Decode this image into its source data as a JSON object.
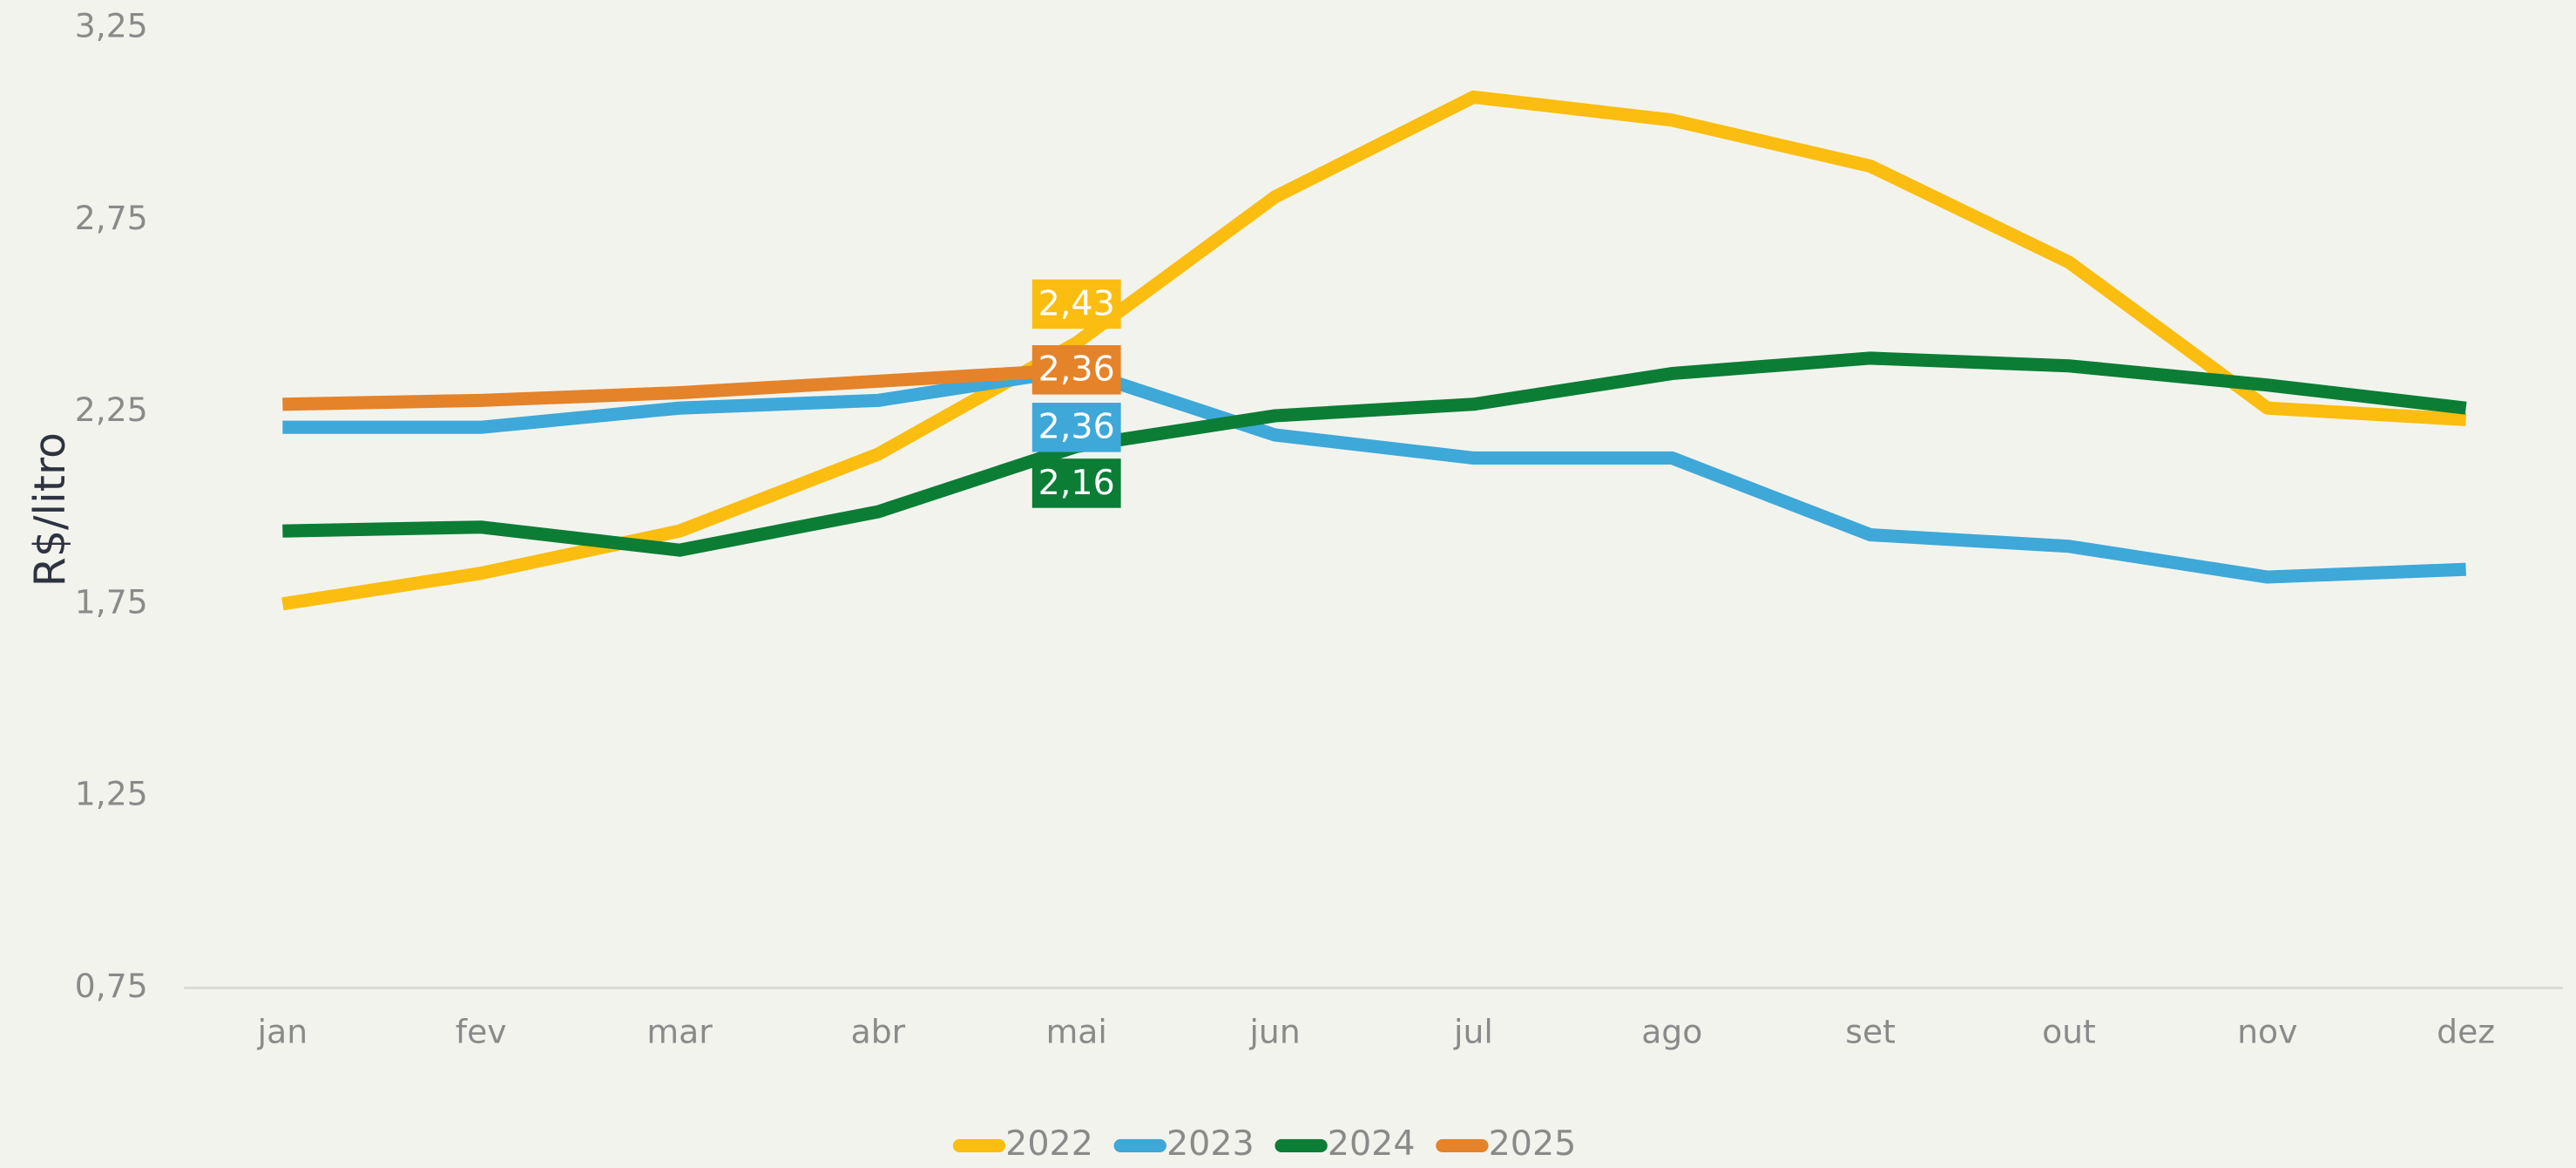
{
  "chart_data": {
    "type": "line",
    "y_label": "R$/litro",
    "categories": [
      "jan",
      "fev",
      "mar",
      "abr",
      "mai",
      "jun",
      "jul",
      "ago",
      "set",
      "out",
      "nov",
      "dez"
    ],
    "ylim": [
      0.75,
      3.25
    ],
    "yticks": [
      {
        "value": 0.75,
        "label": "0,75"
      },
      {
        "value": 1.25,
        "label": "1,25"
      },
      {
        "value": 1.75,
        "label": "1,75"
      },
      {
        "value": 2.25,
        "label": "2,25"
      },
      {
        "value": 2.75,
        "label": "2,75"
      },
      {
        "value": 3.25,
        "label": "3,25"
      }
    ],
    "legend": "bottom",
    "series": [
      {
        "name": "2022",
        "color": "#fbbd0f",
        "values": [
          1.75,
          1.83,
          1.94,
          2.14,
          2.43,
          2.81,
          3.07,
          3.01,
          2.89,
          2.64,
          2.26,
          2.23
        ],
        "value_labels": [
          null,
          null,
          null,
          null,
          "2,43",
          null,
          null,
          null,
          null,
          null,
          null,
          null
        ]
      },
      {
        "name": "2023",
        "color": "#3ea8d8",
        "values": [
          2.21,
          2.21,
          2.26,
          2.28,
          2.36,
          2.19,
          2.13,
          2.13,
          1.93,
          1.9,
          1.82,
          1.84
        ],
        "value_labels": [
          null,
          null,
          null,
          null,
          "2,36",
          null,
          null,
          null,
          null,
          null,
          null,
          null
        ]
      },
      {
        "name": "2024",
        "color": "#0b7d35",
        "values": [
          1.94,
          1.95,
          1.89,
          1.99,
          2.16,
          2.24,
          2.27,
          2.35,
          2.39,
          2.37,
          2.32,
          2.26
        ],
        "value_labels": [
          null,
          null,
          null,
          null,
          "2,16",
          null,
          null,
          null,
          null,
          null,
          null,
          null
        ]
      },
      {
        "name": "2025",
        "color": "#e4832a",
        "values": [
          2.27,
          2.28,
          2.3,
          2.33,
          2.36,
          null,
          null,
          null,
          null,
          null,
          null,
          null
        ],
        "value_labels": [
          null,
          null,
          null,
          null,
          "2,36",
          null,
          null,
          null,
          null,
          null,
          null,
          null
        ]
      }
    ]
  }
}
